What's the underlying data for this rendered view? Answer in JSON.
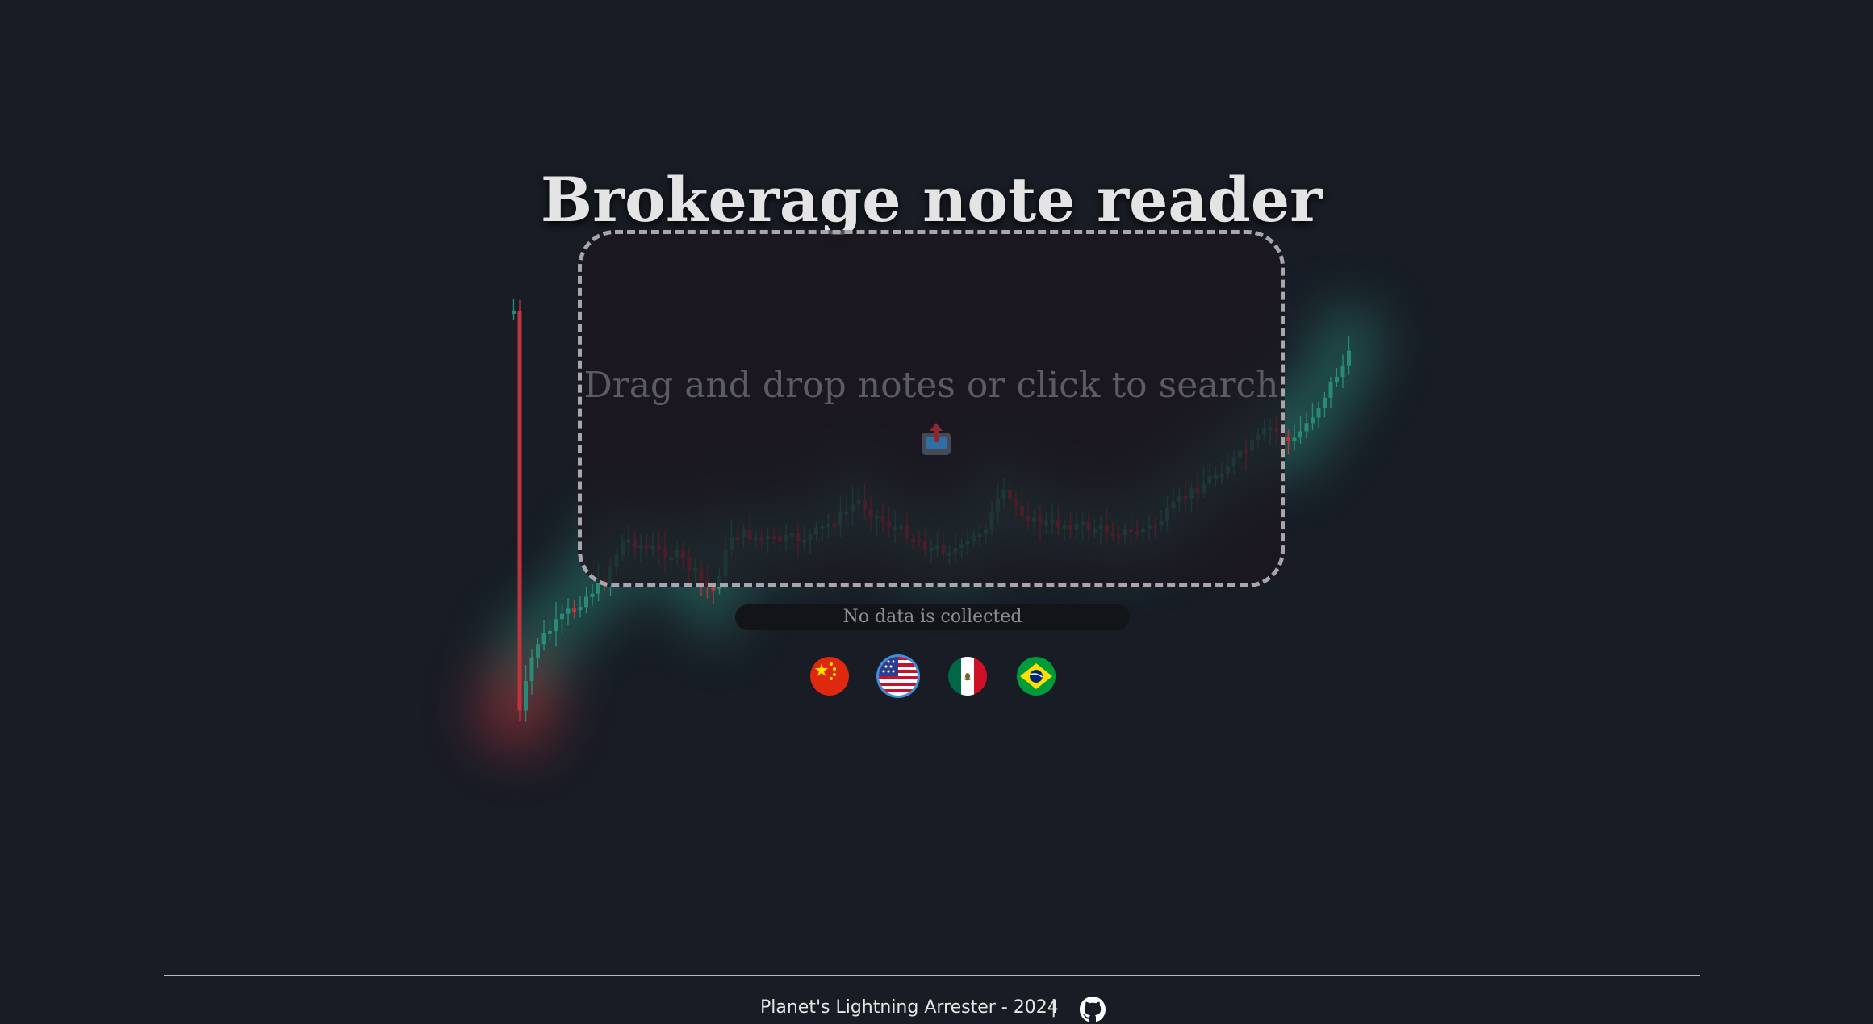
{
  "page": {
    "title": "Brokerage note reader"
  },
  "dropzone": {
    "text": "Drag and drop notes or click to search",
    "icon": "upload-icon"
  },
  "status": {
    "text": "No data is collected"
  },
  "languages": [
    {
      "code": "zh",
      "icon": "china-flag-icon",
      "selected": false
    },
    {
      "code": "en",
      "icon": "usa-flag-icon",
      "selected": true
    },
    {
      "code": "es",
      "icon": "mexico-flag-icon",
      "selected": false
    },
    {
      "code": "pt",
      "icon": "brazil-flag-icon",
      "selected": false
    }
  ],
  "footer": {
    "text": "Planet's Lightning Arrester - 2024",
    "separator": "|",
    "link_icon": "github-icon"
  },
  "colors": {
    "background": "#181c25",
    "candle_up": "#2a8a78",
    "candle_down": "#c0343c",
    "dropzone_border": "#a9a5ad",
    "selected_ring": "#3d8fdc"
  }
}
